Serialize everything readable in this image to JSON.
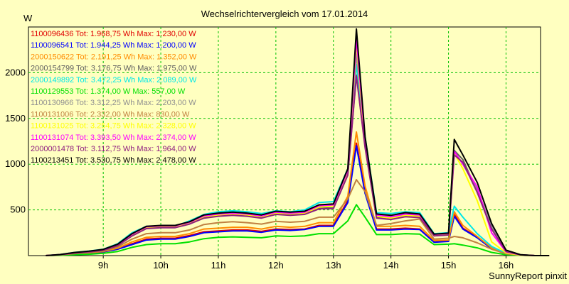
{
  "chart_data": {
    "type": "line",
    "title": "Wechselrichtervergleich vom 17.01.2014",
    "ylabel": "W",
    "footer": "SunnyReport pinxit",
    "ylim": [
      0,
      2500
    ],
    "y_ticks": [
      500,
      1000,
      1500,
      2000
    ],
    "x_ticks": [
      {
        "label": "9h",
        "t": 9
      },
      {
        "label": "10h",
        "t": 10
      },
      {
        "label": "11h",
        "t": 11
      },
      {
        "label": "12h",
        "t": 12
      },
      {
        "label": "13h",
        "t": 13
      },
      {
        "label": "14h",
        "t": 14
      },
      {
        "label": "15h",
        "t": 15
      },
      {
        "label": "16h",
        "t": 16
      }
    ],
    "x": [
      8.0,
      8.25,
      8.5,
      8.75,
      9.0,
      9.25,
      9.5,
      9.75,
      10.0,
      10.25,
      10.5,
      10.75,
      11.0,
      11.25,
      11.5,
      11.75,
      12.0,
      12.25,
      12.5,
      12.75,
      13.0,
      13.25,
      13.4,
      13.55,
      13.75,
      14.0,
      14.25,
      14.5,
      14.75,
      15.0,
      15.1,
      15.25,
      15.5,
      15.75,
      16.0,
      16.25,
      16.5,
      16.75
    ],
    "series": [
      {
        "name": "1100096436 Tot: 1.968,75 Wh Max: 1.230,00 W",
        "color": "#e00000",
        "values": [
          0,
          5,
          15,
          25,
          40,
          70,
          130,
          180,
          190,
          190,
          220,
          260,
          270,
          280,
          280,
          265,
          290,
          285,
          290,
          330,
          330,
          600,
          1230,
          700,
          290,
          290,
          300,
          290,
          150,
          160,
          450,
          300,
          200,
          80,
          20,
          5,
          0,
          0
        ]
      },
      {
        "name": "1100096541 Tot: 1.944,25 Wh Max: 1.200,00 W",
        "color": "#0000ff",
        "values": [
          0,
          5,
          15,
          25,
          40,
          70,
          120,
          170,
          180,
          180,
          210,
          250,
          260,
          270,
          270,
          255,
          280,
          275,
          285,
          320,
          320,
          580,
          1200,
          680,
          280,
          280,
          290,
          285,
          145,
          155,
          430,
          290,
          195,
          75,
          20,
          5,
          0,
          0
        ]
      },
      {
        "name": "2000150622 Tot: 2.191,25 Wh Max: 1.352,00 W",
        "color": "#ff8c00",
        "values": [
          0,
          6,
          18,
          30,
          45,
          80,
          150,
          200,
          210,
          210,
          240,
          290,
          300,
          310,
          310,
          290,
          320,
          310,
          320,
          360,
          360,
          650,
          1352,
          760,
          320,
          320,
          330,
          320,
          165,
          170,
          480,
          330,
          210,
          85,
          22,
          6,
          0,
          0
        ]
      },
      {
        "name": "2000154799 Tot: 3.176,75 Wh Max: 1.975,00 W",
        "color": "#606060",
        "values": [
          0,
          10,
          30,
          40,
          60,
          110,
          220,
          300,
          310,
          310,
          350,
          420,
          440,
          450,
          440,
          420,
          460,
          450,
          460,
          520,
          520,
          900,
          1975,
          1200,
          420,
          400,
          430,
          420,
          220,
          230,
          1150,
          1050,
          700,
          300,
          50,
          10,
          0,
          0
        ]
      },
      {
        "name": "2000149892 Tot: 3.472,25 Wh Max: 2.089,00 W",
        "color": "#00e8e8",
        "values": [
          0,
          12,
          35,
          50,
          70,
          130,
          250,
          320,
          320,
          320,
          380,
          450,
          480,
          490,
          480,
          460,
          490,
          480,
          500,
          580,
          590,
          950,
          2089,
          1300,
          470,
          460,
          480,
          470,
          240,
          250,
          540,
          420,
          240,
          100,
          25,
          5,
          0,
          0
        ]
      },
      {
        "name": "1100129553 Tot: 1.374,00 W Max: 557,00 W",
        "color": "#00e000",
        "values": [
          0,
          3,
          10,
          15,
          25,
          45,
          90,
          120,
          130,
          130,
          150,
          185,
          200,
          205,
          200,
          195,
          215,
          210,
          215,
          240,
          240,
          380,
          557,
          420,
          230,
          230,
          240,
          235,
          120,
          125,
          130,
          115,
          85,
          35,
          10,
          3,
          0,
          0
        ]
      },
      {
        "name": "1100130966 Tot: 3.312,25 Wh Max: 2.203,00 W",
        "color": "#909090",
        "values": [
          0,
          11,
          32,
          45,
          65,
          120,
          230,
          310,
          320,
          320,
          360,
          430,
          450,
          460,
          450,
          430,
          470,
          460,
          470,
          540,
          550,
          920,
          2203,
          1250,
          440,
          420,
          450,
          440,
          230,
          240,
          1130,
          1000,
          720,
          320,
          60,
          10,
          0,
          0
        ]
      },
      {
        "name": "1100131006 Tot: 2.332,00 Wh Max: 830,00 W",
        "color": "#c08040",
        "values": [
          0,
          8,
          22,
          35,
          50,
          95,
          180,
          240,
          250,
          250,
          280,
          340,
          360,
          370,
          360,
          345,
          375,
          365,
          375,
          420,
          420,
          620,
          830,
          700,
          330,
          350,
          380,
          400,
          180,
          190,
          210,
          195,
          140,
          70,
          20,
          5,
          0,
          0
        ]
      },
      {
        "name": "1100131025 Tot: 3.254,75 Wh Max: 2.328,00 W",
        "color": "#ffff00",
        "values": [
          0,
          10,
          30,
          42,
          62,
          115,
          225,
          305,
          315,
          315,
          355,
          425,
          445,
          455,
          445,
          425,
          465,
          455,
          465,
          530,
          540,
          910,
          2328,
          1200,
          430,
          410,
          440,
          430,
          225,
          235,
          1120,
          950,
          600,
          150,
          30,
          5,
          0,
          0
        ]
      },
      {
        "name": "1100131074 Tot: 3.393,50 Wh Max: 2.374,00 W",
        "color": "#ff00ff",
        "values": [
          0,
          11,
          33,
          46,
          66,
          122,
          235,
          315,
          325,
          325,
          365,
          435,
          455,
          465,
          455,
          435,
          475,
          465,
          475,
          545,
          555,
          930,
          2374,
          1260,
          445,
          425,
          455,
          445,
          232,
          242,
          1140,
          1000,
          750,
          250,
          40,
          8,
          0,
          0
        ]
      },
      {
        "name": "2000001478 Tot: 3.112,75 Wh Max: 1.964,00 W",
        "color": "#902080",
        "values": [
          0,
          10,
          28,
          40,
          58,
          108,
          215,
          295,
          305,
          305,
          345,
          410,
          430,
          440,
          430,
          410,
          450,
          440,
          450,
          510,
          515,
          880,
          1964,
          1180,
          410,
          395,
          425,
          415,
          215,
          225,
          1100,
          1020,
          690,
          290,
          45,
          8,
          0,
          0
        ]
      },
      {
        "name": "1100213451 Tot: 3.530,75 Wh Max: 2.478,00 W",
        "color": "#000000",
        "values": [
          0,
          12,
          34,
          48,
          68,
          125,
          240,
          320,
          330,
          330,
          370,
          445,
          465,
          475,
          465,
          445,
          485,
          475,
          485,
          555,
          565,
          950,
          2478,
          1300,
          455,
          440,
          470,
          455,
          235,
          245,
          1270,
          1100,
          800,
          350,
          60,
          10,
          0,
          0
        ]
      }
    ]
  }
}
